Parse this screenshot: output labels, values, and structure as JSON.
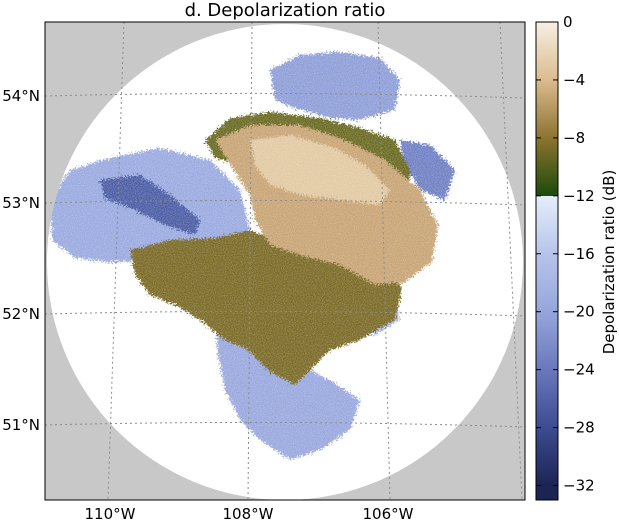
{
  "title": "d. Depolarization ratio",
  "map": {
    "lat_labels": [
      "54°N",
      "53°N",
      "52°N",
      "51°N"
    ],
    "lon_labels": [
      "110°W",
      "108°W",
      "106°W"
    ],
    "colors": {
      "background": "#c8c8c8",
      "radar_disk": "#ffffff",
      "graticule": "#8c8c8c"
    }
  },
  "colorbar": {
    "title": "Depolarization ratio (dB)",
    "tick_values": [
      0,
      -4,
      -8,
      -12,
      -16,
      -20,
      -24,
      -28,
      -32
    ],
    "tick_labels": [
      "0",
      "−4",
      "−8",
      "−12",
      "−16",
      "−20",
      "−24",
      "−28",
      "−32"
    ],
    "range": [
      -33,
      0
    ],
    "stops": [
      {
        "value": 0,
        "color": "#f6f0e4"
      },
      {
        "value": -4,
        "color": "#dcbb8e"
      },
      {
        "value": -8,
        "color": "#8c7430"
      },
      {
        "value": -12,
        "color": "#1c4a0a"
      },
      {
        "value": -12.01,
        "color": "#e6eefa"
      },
      {
        "value": -16,
        "color": "#b6c4ea"
      },
      {
        "value": -20,
        "color": "#96a6dc"
      },
      {
        "value": -24,
        "color": "#6a78bc"
      },
      {
        "value": -28,
        "color": "#3c4c90"
      },
      {
        "value": -32,
        "color": "#1c2454"
      }
    ]
  }
}
